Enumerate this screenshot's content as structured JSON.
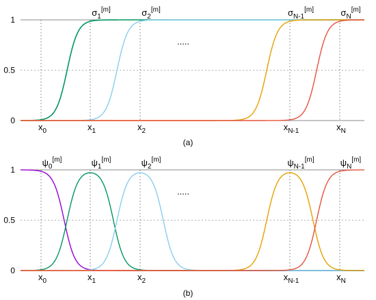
{
  "chart_data": [
    {
      "type": "line",
      "panel_label": "(a)",
      "ylim": [
        0,
        1
      ],
      "y_ticks": [
        {
          "value": 1,
          "label": "1"
        },
        {
          "value": 0.5,
          "label": "0.5"
        },
        {
          "value": 0,
          "label": "0"
        }
      ],
      "grid": "dashed vertical lines at x nodes, dashed horizontal line at 0.5",
      "x_nodes": [
        {
          "base": "x",
          "sub": "0"
        },
        {
          "base": "x",
          "sub": "1"
        },
        {
          "base": "x",
          "sub": "2"
        },
        {
          "base": "x",
          "sub": "N-1"
        },
        {
          "base": "x",
          "sub": "N"
        }
      ],
      "ellipsis": ".....",
      "curve_labels": [
        {
          "base": "σ",
          "sub": "1",
          "sup": "[m]"
        },
        {
          "base": "σ",
          "sub": "2",
          "sup": "[m]"
        },
        {
          "base": "σ",
          "sub": "N-1",
          "sup": "[m]"
        },
        {
          "base": "σ",
          "sub": "N",
          "sup": "[m]"
        }
      ],
      "series": [
        {
          "kind": "sigmoid",
          "node": 1,
          "color": "#00965e"
        },
        {
          "kind": "sigmoid",
          "node": 2,
          "color": "#87ceeb"
        },
        {
          "kind": "sigmoid",
          "node": 3,
          "color": "#e69f00"
        },
        {
          "kind": "sigmoid",
          "node": 4,
          "color": "#e5513c"
        }
      ]
    },
    {
      "type": "line",
      "panel_label": "(b)",
      "ylim": [
        0,
        1
      ],
      "y_ticks": [
        {
          "value": 1,
          "label": "1"
        },
        {
          "value": 0.5,
          "label": "0.5"
        },
        {
          "value": 0,
          "label": "0"
        }
      ],
      "grid": "dashed vertical lines at x nodes, dashed horizontal line at 0.5",
      "x_nodes": [
        {
          "base": "x",
          "sub": "0"
        },
        {
          "base": "x",
          "sub": "1"
        },
        {
          "base": "x",
          "sub": "2"
        },
        {
          "base": "x",
          "sub": "N-1"
        },
        {
          "base": "x",
          "sub": "N"
        }
      ],
      "ellipsis": ".....",
      "curve_labels": [
        {
          "base": "ψ",
          "sub": "0",
          "sup": "[m]"
        },
        {
          "base": "ψ",
          "sub": "1",
          "sup": "[m]"
        },
        {
          "base": "ψ",
          "sub": "2",
          "sup": "[m]"
        },
        {
          "base": "ψ",
          "sub": "N-1",
          "sup": "[m]"
        },
        {
          "base": "ψ",
          "sub": "N",
          "sup": "[m]"
        }
      ],
      "series": [
        {
          "kind": "bump",
          "node": 0,
          "color": "#9400d3"
        },
        {
          "kind": "bump",
          "node": 1,
          "color": "#00965e"
        },
        {
          "kind": "bump",
          "node": 2,
          "color": "#87ceeb"
        },
        {
          "kind": "bump",
          "node": 3,
          "color": "#e69f00"
        },
        {
          "kind": "bump",
          "node": 4,
          "color": "#e5513c"
        }
      ]
    }
  ]
}
